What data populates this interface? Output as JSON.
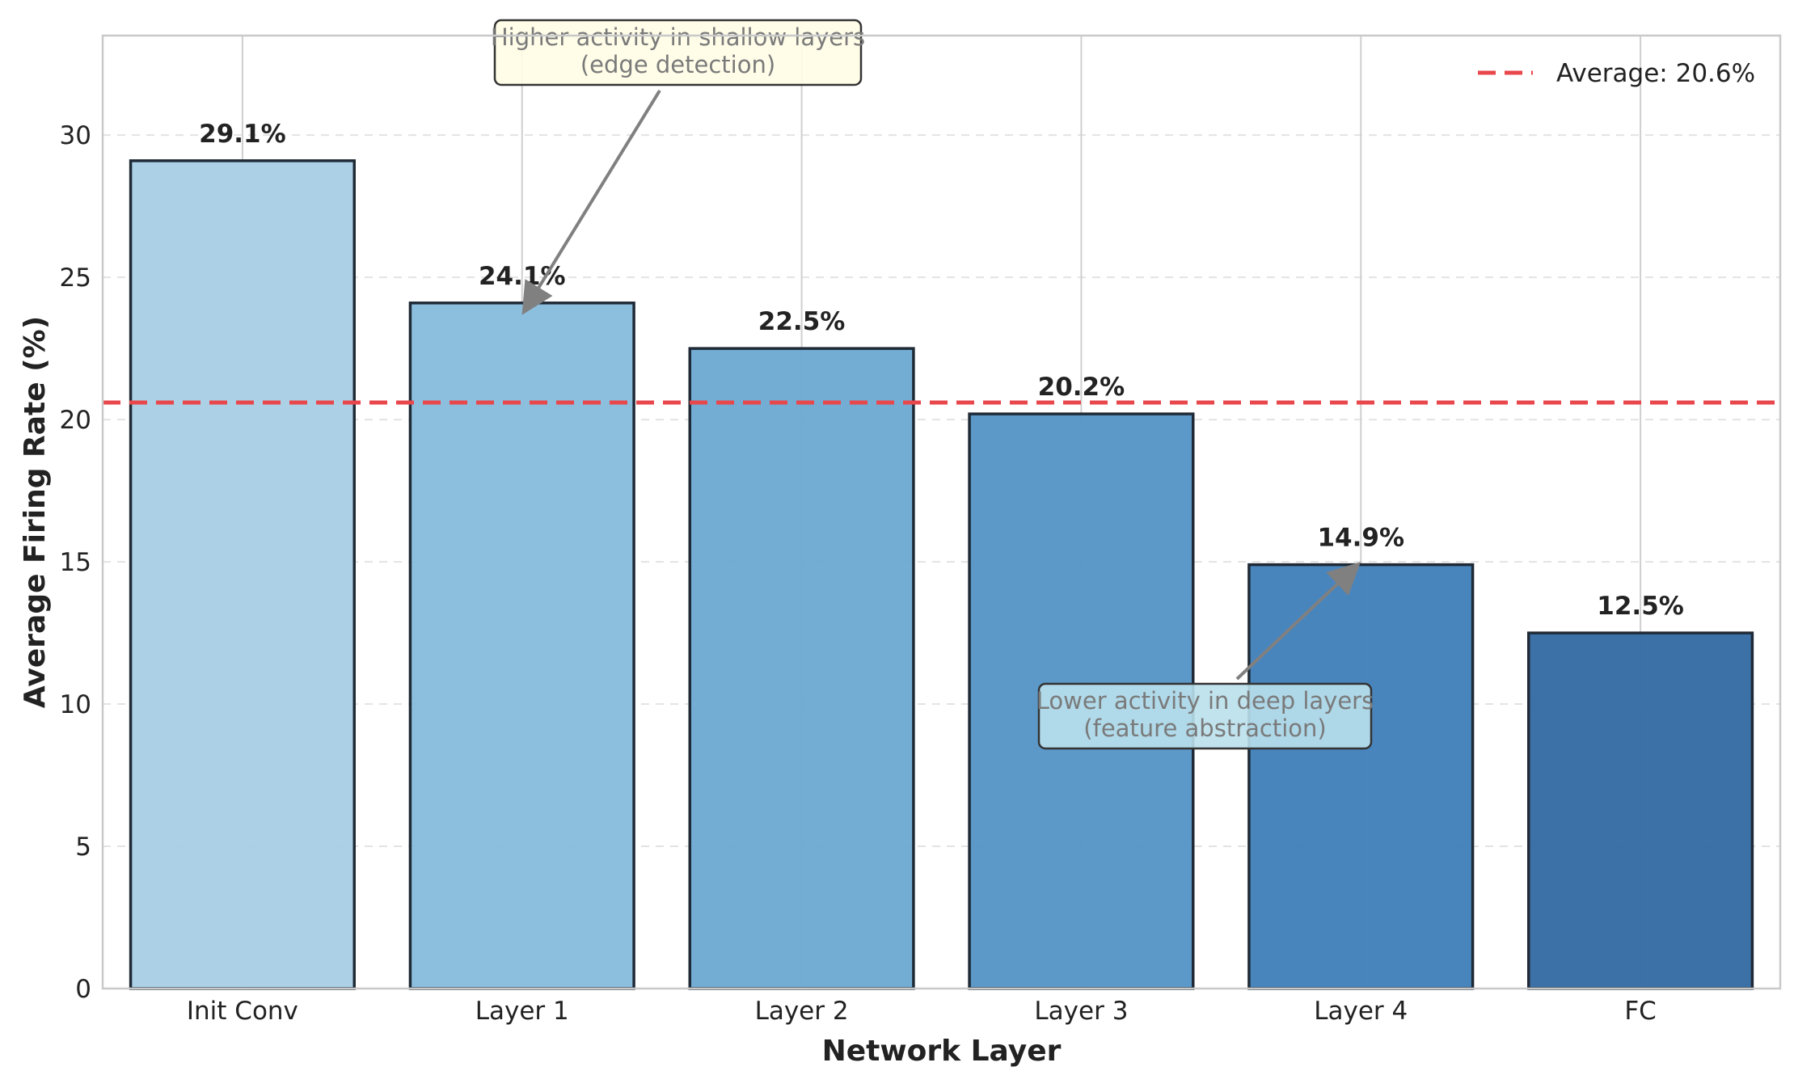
{
  "chart_data": {
    "type": "bar",
    "title": "",
    "xlabel": "Network Layer",
    "ylabel": "Average Firing Rate (%)",
    "categories": [
      "Init Conv",
      "Layer 1",
      "Layer 2",
      "Layer 3",
      "Layer 4",
      "FC"
    ],
    "values": [
      29.1,
      24.1,
      22.5,
      20.2,
      14.9,
      12.5
    ],
    "value_labels": [
      "29.1%",
      "24.1%",
      "22.5%",
      "20.2%",
      "14.9%",
      "12.5%"
    ],
    "bar_colors": [
      "#a9cfe5",
      "#88bcdd",
      "#6eaad3",
      "#5796c6",
      "#4381bb",
      "#366ca4"
    ],
    "ylim": [
      0,
      33.5
    ],
    "yticks": [
      0,
      5,
      10,
      15,
      20,
      25,
      30
    ],
    "grid": true,
    "reference_line": {
      "label": "Average: 20.6%",
      "value": 20.6,
      "color": "#e8474c",
      "style": "dashed"
    },
    "legend": {
      "position": "top-right"
    },
    "annotations": [
      {
        "lines": [
          "Higher activity in shallow layers",
          "(edge detection)"
        ],
        "target_category": "Layer 1",
        "target_value": 24.1,
        "box_fill": "#fffde6"
      },
      {
        "lines": [
          "Lower activity in deep layers",
          "(feature abstraction)"
        ],
        "target_category": "Layer 4",
        "target_value": 14.9,
        "box_fill": "#b9e0ec"
      }
    ]
  }
}
